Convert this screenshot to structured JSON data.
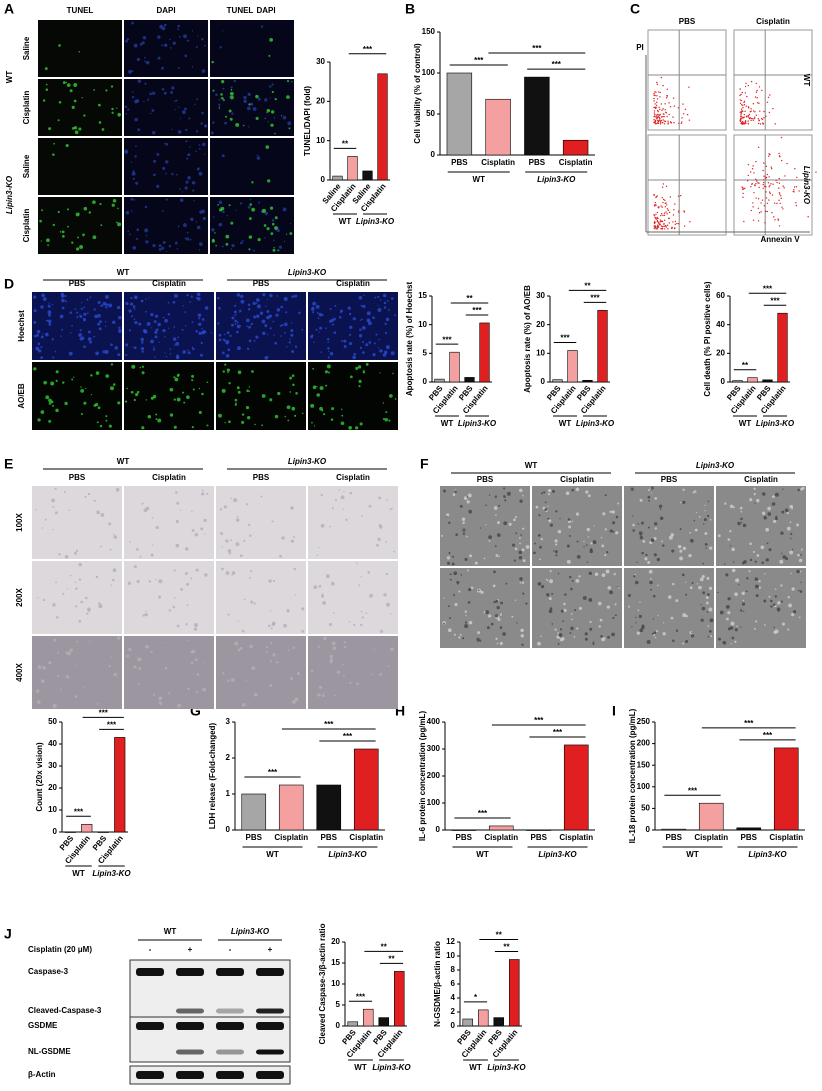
{
  "panel_labels": [
    "A",
    "B",
    "C",
    "D",
    "E",
    "F",
    "G",
    "H",
    "I",
    "J"
  ],
  "panel_a": {
    "columns": [
      "TUNEL",
      "DAPI"
    ],
    "rows": [
      "Saline",
      "Cisplatin",
      "Saline",
      "Cisplatin"
    ],
    "groups": [
      "WT",
      "Lipin3-KO"
    ]
  },
  "panel_c": {
    "columns": [
      "PBS",
      "Cisplatin"
    ],
    "rows": [
      "WT",
      "Lipin3-KO"
    ],
    "y_label": "PI",
    "x_label": "Annexin V"
  },
  "panel_d": {
    "groups": [
      "WT",
      "Lipin3-KO"
    ],
    "columns": [
      "PBS",
      "Cisplatin",
      "PBS",
      "Cisplatin"
    ],
    "rows": [
      "Hoechst",
      "AO/EB"
    ]
  },
  "panel_e": {
    "groups": [
      "WT",
      "Lipin3-KO"
    ],
    "columns": [
      "PBS",
      "Cisplatin",
      "PBS",
      "Cisplatin"
    ],
    "rows": [
      "100X",
      "200X",
      "400X"
    ]
  },
  "panel_f": {
    "groups": [
      "WT",
      "Lipin3-KO"
    ],
    "columns": [
      "PBS",
      "Cisplatin",
      "PBS",
      "Cisplatin"
    ]
  },
  "panel_j": {
    "groups": [
      "WT",
      "Lipin3-KO"
    ],
    "treatment": "Cisplatin (20 μM)",
    "signs": [
      "-",
      "+",
      "-",
      "+"
    ],
    "bands": [
      "Caspase-3",
      "Cleaved-Caspase-3",
      "GSDME",
      "NL-GSDME",
      "β-Actin"
    ]
  },
  "chart_data": [
    {
      "type": "bar",
      "y_label": "TUNEL/DAPI (fold)",
      "categories": [
        "Saline",
        "Cisplatin",
        "Saline",
        "Cisplatin"
      ],
      "values": [
        1,
        6,
        2.3,
        27
      ],
      "colors": [
        "#a6a6a6",
        "#f4a0a0",
        "#111111",
        "#e02020"
      ],
      "ylim": [
        0,
        30
      ],
      "yticks": [
        0,
        10,
        20,
        30
      ],
      "groups": [
        "WT",
        "Lipin3-KO"
      ],
      "annotations": [
        "**",
        "",
        "***"
      ]
    },
    {
      "type": "bar",
      "y_label": "Cell viability (% of control)",
      "categories": [
        "PBS",
        "Cisplatin",
        "PBS",
        "Cisplatin"
      ],
      "values": [
        100,
        68,
        95,
        18
      ],
      "colors": [
        "#a6a6a6",
        "#f4a0a0",
        "#111111",
        "#e02020"
      ],
      "ylim": [
        0,
        150
      ],
      "yticks": [
        0,
        50,
        100,
        150
      ],
      "groups": [
        "WT",
        "Lipin3-KO"
      ],
      "annotations": [
        "***",
        "***",
        "***"
      ]
    },
    {
      "type": "bar",
      "y_label": "Apoptosis rate (%) of Hoechst",
      "categories": [
        "PBS",
        "Cisplatin",
        "PBS",
        "Cisplatin"
      ],
      "values": [
        0.5,
        5.2,
        0.8,
        10.3
      ],
      "colors": [
        "#a6a6a6",
        "#f4a0a0",
        "#111111",
        "#e02020"
      ],
      "ylim": [
        0,
        15
      ],
      "yticks": [
        0,
        5,
        10,
        15
      ],
      "groups": [
        "WT",
        "Lipin3-KO"
      ],
      "annotations": [
        "***",
        "***",
        "**"
      ]
    },
    {
      "type": "bar",
      "y_label": "Apoptosis rate (%) of AO/EB",
      "categories": [
        "PBS",
        "Cisplatin",
        "PBS",
        "Cisplatin"
      ],
      "values": [
        0.8,
        11,
        0.6,
        25
      ],
      "colors": [
        "#a6a6a6",
        "#f4a0a0",
        "#111111",
        "#e02020"
      ],
      "ylim": [
        0,
        30
      ],
      "yticks": [
        0,
        10,
        20,
        30
      ],
      "groups": [
        "WT",
        "Lipin3-KO"
      ],
      "annotations": [
        "***",
        "***",
        "**"
      ]
    },
    {
      "type": "bar",
      "y_label": "Cell death (% PI positive cells)",
      "categories": [
        "PBS",
        "Cisplatin",
        "PBS",
        "Cisplatin"
      ],
      "values": [
        1,
        3,
        1.5,
        48
      ],
      "colors": [
        "#a6a6a6",
        "#f4a0a0",
        "#111111",
        "#e02020"
      ],
      "ylim": [
        0,
        60
      ],
      "yticks": [
        0,
        20,
        40,
        60
      ],
      "groups": [
        "WT",
        "Lipin3-KO"
      ],
      "annotations": [
        "**",
        "***",
        "***"
      ]
    },
    {
      "type": "bar",
      "y_label": "Count (20x vision)",
      "categories": [
        "PBS",
        "Cisplatin",
        "PBS",
        "Cisplatin"
      ],
      "values": [
        0,
        3.5,
        0,
        43
      ],
      "colors": [
        "#a6a6a6",
        "#f4a0a0",
        "#111111",
        "#e02020"
      ],
      "ylim": [
        0,
        50
      ],
      "yticks": [
        0,
        10,
        20,
        30,
        40,
        50
      ],
      "groups": [
        "WT",
        "Lipin3-KO"
      ],
      "annotations": [
        "***",
        "***",
        "***"
      ]
    },
    {
      "type": "bar",
      "y_label": "LDH release (Fold-changed)",
      "categories": [
        "PBS",
        "Cisplatin",
        "PBS",
        "Cisplatin"
      ],
      "values": [
        1.0,
        1.25,
        1.25,
        2.25
      ],
      "colors": [
        "#a6a6a6",
        "#f4a0a0",
        "#111111",
        "#e02020"
      ],
      "ylim": [
        0,
        3
      ],
      "yticks": [
        0,
        1,
        2,
        3
      ],
      "groups": [
        "WT",
        "Lipin3-KO"
      ],
      "annotations": [
        "***",
        "***",
        "***"
      ]
    },
    {
      "type": "bar",
      "y_label": "IL-6 protein concentration (pg/mL)",
      "categories": [
        "PBS",
        "Cisplatin",
        "PBS",
        "Cisplatin"
      ],
      "values": [
        0,
        15,
        0,
        315
      ],
      "colors": [
        "#a6a6a6",
        "#f4a0a0",
        "#111111",
        "#e02020"
      ],
      "ylim": [
        0,
        400
      ],
      "yticks": [
        0,
        100,
        200,
        300,
        400
      ],
      "groups": [
        "WT",
        "Lipin3-KO"
      ],
      "annotations": [
        "***",
        "***",
        "***"
      ]
    },
    {
      "type": "bar",
      "y_label": "IL-18 protein concentration (pg/mL)",
      "categories": [
        "PBS",
        "Cisplatin",
        "PBS",
        "Cisplatin"
      ],
      "values": [
        2,
        62,
        5,
        190
      ],
      "colors": [
        "#a6a6a6",
        "#f4a0a0",
        "#111111",
        "#e02020"
      ],
      "ylim": [
        0,
        250
      ],
      "yticks": [
        0,
        50,
        100,
        150,
        200,
        250
      ],
      "groups": [
        "WT",
        "Lipin3-KO"
      ],
      "annotations": [
        "***",
        "***",
        "***"
      ]
    },
    {
      "type": "bar",
      "y_label": "Cleaved Caspase-3/β-actin ratio",
      "categories": [
        "PBS",
        "Cisplatin",
        "PBS",
        "Cisplatin"
      ],
      "values": [
        1,
        4,
        2,
        13
      ],
      "colors": [
        "#a6a6a6",
        "#f4a0a0",
        "#111111",
        "#e02020"
      ],
      "ylim": [
        0,
        20
      ],
      "yticks": [
        0,
        5,
        10,
        15,
        20
      ],
      "groups": [
        "WT",
        "Lipin3-KO"
      ],
      "annotations": [
        "***",
        "**",
        "**"
      ]
    },
    {
      "type": "bar",
      "y_label": "N-GSDME/β-actin ratio",
      "categories": [
        "PBS",
        "Cisplatin",
        "PBS",
        "Cisplatin"
      ],
      "values": [
        1,
        2.3,
        1.2,
        9.5
      ],
      "colors": [
        "#a6a6a6",
        "#f4a0a0",
        "#111111",
        "#e02020"
      ],
      "ylim": [
        0,
        12
      ],
      "yticks": [
        0,
        2,
        4,
        6,
        8,
        10,
        12
      ],
      "groups": [
        "WT",
        "Lipin3-KO"
      ],
      "annotations": [
        "*",
        "**",
        "**"
      ]
    }
  ]
}
